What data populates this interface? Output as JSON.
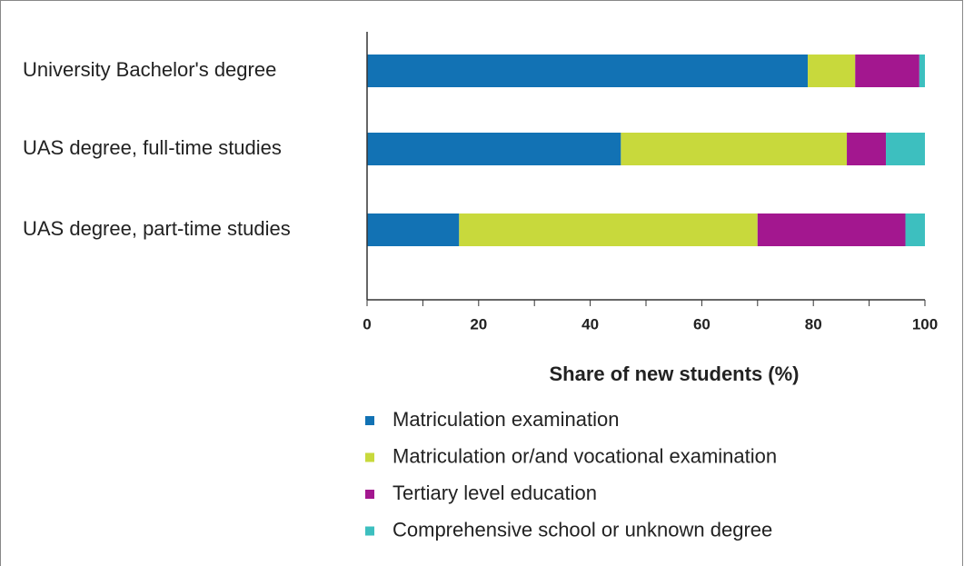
{
  "chart_data": {
    "type": "stacked_barh",
    "xlabel": "Share of new students (%)",
    "categories": [
      "University Bachelor's degree",
      "UAS degree, full-time studies",
      "UAS degree, part-time studies"
    ],
    "series": [
      {
        "name": "Matriculation examination",
        "color": "#1272b4",
        "values": [
          79,
          45.5,
          16.5
        ]
      },
      {
        "name": "Matriculation or/and vocational examination",
        "color": "#c8d93c",
        "values": [
          8.5,
          40.5,
          53.5
        ]
      },
      {
        "name": "Tertiary level education",
        "color": "#a3178f",
        "values": [
          11.5,
          7,
          26.5
        ]
      },
      {
        "name": "Comprehensive school or unknown degree",
        "color": "#3dbfbf",
        "values": [
          1,
          7,
          3.5
        ]
      }
    ],
    "xlim": [
      0,
      100
    ],
    "xticks": [
      0,
      20,
      40,
      60,
      80,
      100
    ],
    "xminorticks": [
      10,
      30,
      50,
      70,
      90
    ]
  }
}
